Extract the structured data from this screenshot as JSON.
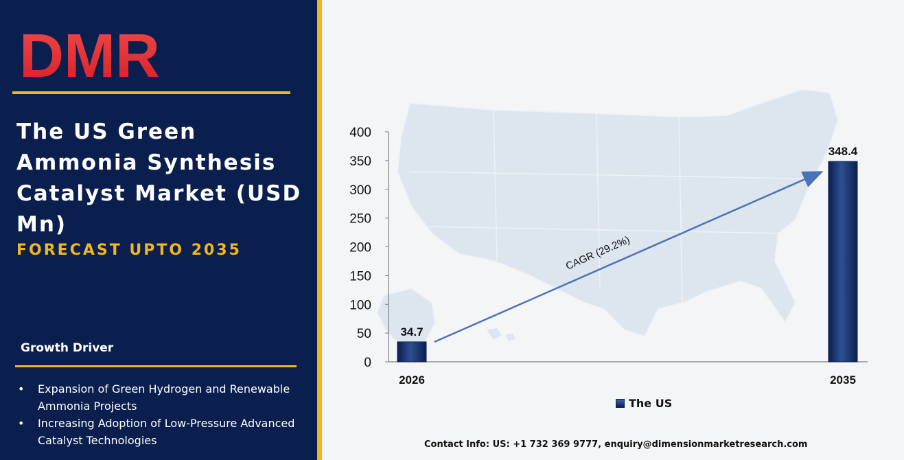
{
  "brand": {
    "logo_text": "DMR"
  },
  "header": {
    "title": "The US Green Ammonia Synthesis Catalyst Market (USD Mn)",
    "subtitle": "FORECAST UPTO 2035"
  },
  "growth_driver": {
    "heading": "Growth Driver",
    "items": [
      "Expansion of Green Hydrogen and Renewable Ammonia Projects",
      "Increasing Adoption of Low-Pressure Advanced Catalyst Technologies"
    ]
  },
  "contact": "Contact Info: US: +1 732 369 9777, enquiry@dimensionmarketresearch.com",
  "colors": {
    "panel": "#0b1f4f",
    "accent": "#f0b81c",
    "bar": "#0b1f4f",
    "arrow": "#4a72b8"
  },
  "chart_data": {
    "type": "bar",
    "categories": [
      "2026",
      "2035"
    ],
    "series": [
      {
        "name": "The US",
        "values": [
          34.7,
          348.4
        ]
      }
    ],
    "data_labels": [
      "34.7",
      "348.4"
    ],
    "annotation": "CAGR (29.2%)",
    "title": "",
    "xlabel": "",
    "ylabel": "",
    "ylim": [
      0,
      400
    ],
    "yticks": [
      0,
      50,
      100,
      150,
      200,
      250,
      300,
      350,
      400
    ],
    "grid": false,
    "legend": "bottom",
    "background_icon": "usa-map"
  }
}
